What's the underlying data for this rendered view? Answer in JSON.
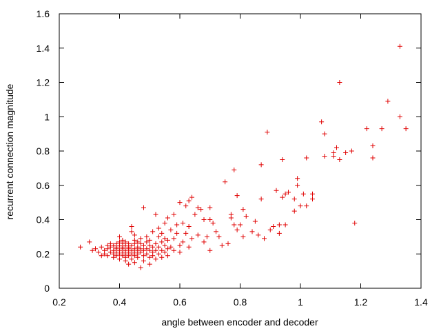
{
  "chart_data": {
    "type": "scatter",
    "title": "",
    "xlabel": "angle between encoder and decoder",
    "ylabel": "recurrent connection magnitude",
    "xlim": [
      0.2,
      1.4
    ],
    "ylim": [
      0,
      1.6
    ],
    "x_ticks": [
      "0.2",
      "0.4",
      "0.6",
      "0.8",
      "1",
      "1.2",
      "1.4"
    ],
    "y_ticks": [
      "0",
      "0.2",
      "0.4",
      "0.6",
      "0.8",
      "1",
      "1.2",
      "1.4",
      "1.6"
    ],
    "grid": false,
    "legend": "none",
    "marker": "+",
    "color": "#e00000",
    "series": [
      {
        "values": [
          [
            0.27,
            0.24
          ],
          [
            0.3,
            0.27
          ],
          [
            0.31,
            0.22
          ],
          [
            0.32,
            0.23
          ],
          [
            0.33,
            0.21
          ],
          [
            0.34,
            0.19
          ],
          [
            0.34,
            0.24
          ],
          [
            0.35,
            0.22
          ],
          [
            0.35,
            0.2
          ],
          [
            0.36,
            0.25
          ],
          [
            0.36,
            0.23
          ],
          [
            0.36,
            0.19
          ],
          [
            0.37,
            0.21
          ],
          [
            0.37,
            0.24
          ],
          [
            0.37,
            0.26
          ],
          [
            0.38,
            0.22
          ],
          [
            0.38,
            0.2
          ],
          [
            0.38,
            0.25
          ],
          [
            0.38,
            0.18
          ],
          [
            0.39,
            0.23
          ],
          [
            0.39,
            0.21
          ],
          [
            0.39,
            0.26
          ],
          [
            0.39,
            0.19
          ],
          [
            0.39,
            0.24
          ],
          [
            0.4,
            0.22
          ],
          [
            0.4,
            0.2
          ],
          [
            0.4,
            0.25
          ],
          [
            0.4,
            0.27
          ],
          [
            0.4,
            0.17
          ],
          [
            0.4,
            0.3
          ],
          [
            0.41,
            0.23
          ],
          [
            0.41,
            0.21
          ],
          [
            0.41,
            0.26
          ],
          [
            0.41,
            0.19
          ],
          [
            0.41,
            0.24
          ],
          [
            0.41,
            0.28
          ],
          [
            0.42,
            0.22
          ],
          [
            0.42,
            0.2
          ],
          [
            0.42,
            0.25
          ],
          [
            0.42,
            0.18
          ],
          [
            0.42,
            0.16
          ],
          [
            0.42,
            0.27
          ],
          [
            0.43,
            0.23
          ],
          [
            0.43,
            0.21
          ],
          [
            0.43,
            0.26
          ],
          [
            0.43,
            0.19
          ],
          [
            0.43,
            0.24
          ],
          [
            0.43,
            0.14
          ],
          [
            0.44,
            0.22
          ],
          [
            0.44,
            0.2
          ],
          [
            0.44,
            0.25
          ],
          [
            0.44,
            0.17
          ],
          [
            0.44,
            0.36
          ],
          [
            0.44,
            0.33
          ],
          [
            0.45,
            0.23
          ],
          [
            0.45,
            0.21
          ],
          [
            0.45,
            0.26
          ],
          [
            0.45,
            0.19
          ],
          [
            0.45,
            0.28
          ],
          [
            0.45,
            0.31
          ],
          [
            0.45,
            0.15
          ],
          [
            0.46,
            0.22
          ],
          [
            0.46,
            0.24
          ],
          [
            0.46,
            0.2
          ],
          [
            0.46,
            0.27
          ],
          [
            0.46,
            0.18
          ],
          [
            0.47,
            0.23
          ],
          [
            0.47,
            0.21
          ],
          [
            0.47,
            0.26
          ],
          [
            0.47,
            0.12
          ],
          [
            0.47,
            0.29
          ],
          [
            0.48,
            0.47
          ],
          [
            0.48,
            0.22
          ],
          [
            0.48,
            0.25
          ],
          [
            0.48,
            0.19
          ],
          [
            0.48,
            0.16
          ],
          [
            0.49,
            0.23
          ],
          [
            0.49,
            0.27
          ],
          [
            0.49,
            0.2
          ],
          [
            0.49,
            0.3
          ],
          [
            0.5,
            0.22
          ],
          [
            0.5,
            0.25
          ],
          [
            0.5,
            0.18
          ],
          [
            0.5,
            0.14
          ],
          [
            0.5,
            0.28
          ],
          [
            0.51,
            0.24
          ],
          [
            0.51,
            0.21
          ],
          [
            0.51,
            0.33
          ],
          [
            0.51,
            0.19
          ],
          [
            0.52,
            0.43
          ],
          [
            0.52,
            0.26
          ],
          [
            0.52,
            0.22
          ],
          [
            0.52,
            0.17
          ],
          [
            0.53,
            0.24
          ],
          [
            0.53,
            0.3
          ],
          [
            0.53,
            0.2
          ],
          [
            0.53,
            0.35
          ],
          [
            0.54,
            0.22
          ],
          [
            0.54,
            0.27
          ],
          [
            0.54,
            0.18
          ],
          [
            0.54,
            0.32
          ],
          [
            0.55,
            0.25
          ],
          [
            0.55,
            0.21
          ],
          [
            0.55,
            0.29
          ],
          [
            0.55,
            0.38
          ],
          [
            0.56,
            0.23
          ],
          [
            0.56,
            0.41
          ],
          [
            0.56,
            0.19
          ],
          [
            0.56,
            0.28
          ],
          [
            0.57,
            0.34
          ],
          [
            0.57,
            0.24
          ],
          [
            0.58,
            0.29
          ],
          [
            0.58,
            0.43
          ],
          [
            0.58,
            0.22
          ],
          [
            0.59,
            0.32
          ],
          [
            0.59,
            0.37
          ],
          [
            0.6,
            0.25
          ],
          [
            0.6,
            0.5
          ],
          [
            0.6,
            0.21
          ],
          [
            0.61,
            0.27
          ],
          [
            0.61,
            0.38
          ],
          [
            0.62,
            0.48
          ],
          [
            0.62,
            0.32
          ],
          [
            0.63,
            0.51
          ],
          [
            0.63,
            0.24
          ],
          [
            0.63,
            0.36
          ],
          [
            0.64,
            0.53
          ],
          [
            0.64,
            0.29
          ],
          [
            0.65,
            0.43
          ],
          [
            0.66,
            0.47
          ],
          [
            0.66,
            0.31
          ],
          [
            0.67,
            0.46
          ],
          [
            0.68,
            0.4
          ],
          [
            0.68,
            0.27
          ],
          [
            0.69,
            0.3
          ],
          [
            0.7,
            0.47
          ],
          [
            0.7,
            0.4
          ],
          [
            0.7,
            0.22
          ],
          [
            0.71,
            0.38
          ],
          [
            0.72,
            0.33
          ],
          [
            0.73,
            0.3
          ],
          [
            0.74,
            0.25
          ],
          [
            0.75,
            0.62
          ],
          [
            0.76,
            0.26
          ],
          [
            0.77,
            0.41
          ],
          [
            0.77,
            0.43
          ],
          [
            0.78,
            0.37
          ],
          [
            0.78,
            0.69
          ],
          [
            0.79,
            0.54
          ],
          [
            0.79,
            0.34
          ],
          [
            0.8,
            0.37
          ],
          [
            0.81,
            0.46
          ],
          [
            0.81,
            0.3
          ],
          [
            0.82,
            0.42
          ],
          [
            0.84,
            0.33
          ],
          [
            0.85,
            0.39
          ],
          [
            0.86,
            0.31
          ],
          [
            0.87,
            0.72
          ],
          [
            0.87,
            0.52
          ],
          [
            0.88,
            0.29
          ],
          [
            0.89,
            0.91
          ],
          [
            0.9,
            0.34
          ],
          [
            0.91,
            0.36
          ],
          [
            0.92,
            0.57
          ],
          [
            0.93,
            0.37
          ],
          [
            0.93,
            0.32
          ],
          [
            0.94,
            0.75
          ],
          [
            0.94,
            0.53
          ],
          [
            0.95,
            0.55
          ],
          [
            0.95,
            0.37
          ],
          [
            0.96,
            0.56
          ],
          [
            0.98,
            0.52
          ],
          [
            0.98,
            0.45
          ],
          [
            0.99,
            0.6
          ],
          [
            0.99,
            0.64
          ],
          [
            1.0,
            0.48
          ],
          [
            1.01,
            0.55
          ],
          [
            1.02,
            0.76
          ],
          [
            1.02,
            0.48
          ],
          [
            1.04,
            0.55
          ],
          [
            1.04,
            0.52
          ],
          [
            1.07,
            0.97
          ],
          [
            1.08,
            0.9
          ],
          [
            1.08,
            0.77
          ],
          [
            1.11,
            0.77
          ],
          [
            1.11,
            0.79
          ],
          [
            1.12,
            0.82
          ],
          [
            1.13,
            0.75
          ],
          [
            1.13,
            1.2
          ],
          [
            1.15,
            0.79
          ],
          [
            1.17,
            0.8
          ],
          [
            1.18,
            0.38
          ],
          [
            1.22,
            0.93
          ],
          [
            1.24,
            0.83
          ],
          [
            1.24,
            0.76
          ],
          [
            1.27,
            0.93
          ],
          [
            1.29,
            1.09
          ],
          [
            1.33,
            1.0
          ],
          [
            1.33,
            1.41
          ],
          [
            1.35,
            0.93
          ]
        ]
      }
    ]
  }
}
